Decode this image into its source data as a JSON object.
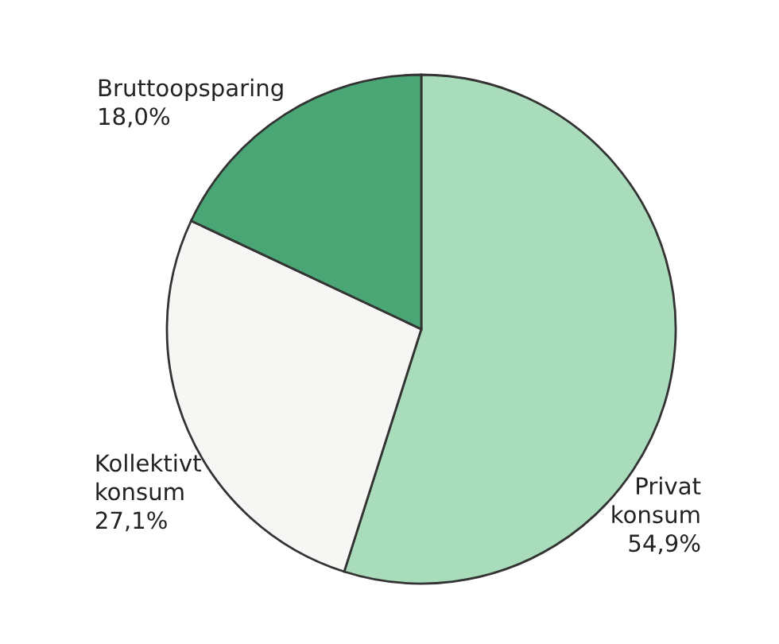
{
  "chart_data": {
    "type": "pie",
    "categories": [
      "Privat konsum",
      "Kollektivt konsum",
      "Bruttoopsparing"
    ],
    "values": [
      54.9,
      27.1,
      18.0
    ],
    "colors": [
      "#a9dcba",
      "#f6f6f4",
      "#4ba676"
    ],
    "value_labels": [
      "54,9%",
      "27,1%",
      "18,0%"
    ],
    "legend": false
  }
}
